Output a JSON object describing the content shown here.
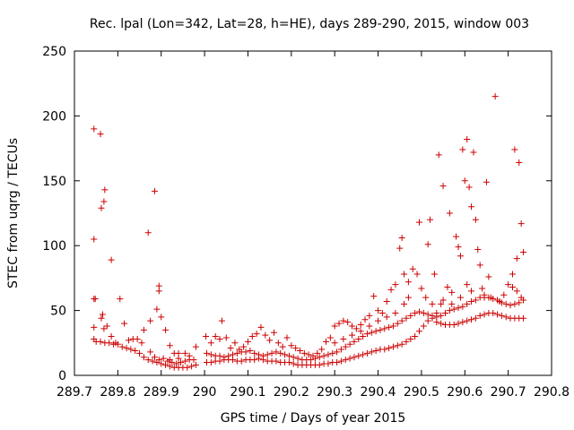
{
  "chart_data": {
    "type": "scatter",
    "title": "Rec. lpal (Lon=342, Lat=28, h=HE), days 289-290, 2015, window 003",
    "xlabel": "GPS time / Days of year 2015",
    "ylabel": "STEC from uqrg / TECUs",
    "xlim": [
      289.7,
      290.8
    ],
    "ylim": [
      0,
      250
    ],
    "xticks": [
      "289.7",
      "289.8",
      "289.9",
      "290",
      "290.1",
      "290.2",
      "290.3",
      "290.4",
      "290.5",
      "290.6",
      "290.7",
      "290.8"
    ],
    "yticks": [
      "0",
      "50",
      "100",
      "150",
      "200",
      "250"
    ],
    "grid": false,
    "legend": "none",
    "marker": "+",
    "color": "#cc0000",
    "points": [
      [
        289.745,
        190
      ],
      [
        289.76,
        186
      ],
      [
        289.77,
        143
      ],
      [
        289.768,
        134
      ],
      [
        289.762,
        129
      ],
      [
        289.745,
        105
      ],
      [
        289.785,
        89
      ],
      [
        289.745,
        59
      ],
      [
        289.748,
        59
      ],
      [
        289.805,
        59
      ],
      [
        289.765,
        47
      ],
      [
        289.762,
        44
      ],
      [
        289.768,
        36
      ],
      [
        289.775,
        38
      ],
      [
        289.745,
        37
      ],
      [
        289.745,
        28
      ],
      [
        289.75,
        26
      ],
      [
        289.76,
        26
      ],
      [
        289.77,
        25
      ],
      [
        289.78,
        25
      ],
      [
        289.79,
        24
      ],
      [
        289.8,
        24
      ],
      [
        289.81,
        22
      ],
      [
        289.82,
        21
      ],
      [
        289.83,
        20
      ],
      [
        289.84,
        19
      ],
      [
        289.85,
        17
      ],
      [
        289.86,
        14
      ],
      [
        289.87,
        12
      ],
      [
        289.88,
        11
      ],
      [
        289.89,
        10
      ],
      [
        289.9,
        9
      ],
      [
        289.91,
        8
      ],
      [
        289.92,
        7
      ],
      [
        289.93,
        6
      ],
      [
        289.94,
        6
      ],
      [
        289.95,
        6
      ],
      [
        289.96,
        6
      ],
      [
        289.97,
        7
      ],
      [
        289.98,
        8
      ],
      [
        289.785,
        30
      ],
      [
        289.795,
        25
      ],
      [
        289.815,
        40
      ],
      [
        289.825,
        27
      ],
      [
        289.835,
        28
      ],
      [
        289.845,
        28
      ],
      [
        289.855,
        25
      ],
      [
        289.86,
        35
      ],
      [
        289.875,
        42
      ],
      [
        289.87,
        110
      ],
      [
        289.885,
        142
      ],
      [
        289.89,
        51
      ],
      [
        289.895,
        69
      ],
      [
        289.895,
        65
      ],
      [
        289.9,
        45
      ],
      [
        289.91,
        35
      ],
      [
        289.92,
        23
      ],
      [
        289.93,
        17
      ],
      [
        289.94,
        17
      ],
      [
        289.955,
        17
      ],
      [
        289.965,
        15
      ],
      [
        289.98,
        22
      ],
      [
        289.875,
        18
      ],
      [
        289.885,
        14
      ],
      [
        289.895,
        12
      ],
      [
        289.905,
        13
      ],
      [
        289.915,
        11
      ],
      [
        289.925,
        10
      ],
      [
        289.935,
        9
      ],
      [
        289.945,
        10
      ],
      [
        289.955,
        11
      ],
      [
        289.965,
        12
      ],
      [
        289.975,
        12
      ],
      [
        289.92,
        12
      ],
      [
        289.94,
        13
      ],
      [
        290.005,
        10
      ],
      [
        290.015,
        10
      ],
      [
        290.025,
        11
      ],
      [
        290.035,
        11
      ],
      [
        290.045,
        12
      ],
      [
        290.055,
        12
      ],
      [
        290.065,
        12
      ],
      [
        290.075,
        11
      ],
      [
        290.085,
        11
      ],
      [
        290.095,
        12
      ],
      [
        290.105,
        12
      ],
      [
        290.115,
        12
      ],
      [
        290.125,
        13
      ],
      [
        290.135,
        12
      ],
      [
        290.145,
        11
      ],
      [
        290.155,
        11
      ],
      [
        290.165,
        11
      ],
      [
        290.175,
        10
      ],
      [
        290.185,
        10
      ],
      [
        290.195,
        10
      ],
      [
        290.205,
        9
      ],
      [
        290.215,
        8
      ],
      [
        290.225,
        8
      ],
      [
        290.235,
        8
      ],
      [
        290.245,
        8
      ],
      [
        290.255,
        8
      ],
      [
        290.265,
        8
      ],
      [
        290.275,
        9
      ],
      [
        290.285,
        9
      ],
      [
        290.295,
        10
      ],
      [
        290.305,
        10
      ],
      [
        290.315,
        11
      ],
      [
        290.325,
        12
      ],
      [
        290.335,
        13
      ],
      [
        290.345,
        14
      ],
      [
        290.355,
        15
      ],
      [
        290.365,
        16
      ],
      [
        290.375,
        17
      ],
      [
        290.385,
        18
      ],
      [
        290.395,
        19
      ],
      [
        290.405,
        20
      ],
      [
        290.415,
        20
      ],
      [
        290.425,
        21
      ],
      [
        290.435,
        22
      ],
      [
        290.445,
        23
      ],
      [
        290.455,
        24
      ],
      [
        290.465,
        26
      ],
      [
        290.475,
        28
      ],
      [
        290.485,
        30
      ],
      [
        290.495,
        34
      ],
      [
        290.505,
        38
      ],
      [
        290.515,
        42
      ],
      [
        290.525,
        44
      ],
      [
        290.535,
        41
      ],
      [
        290.545,
        40
      ],
      [
        290.555,
        39
      ],
      [
        290.565,
        39
      ],
      [
        290.575,
        39
      ],
      [
        290.585,
        40
      ],
      [
        290.595,
        41
      ],
      [
        290.605,
        42
      ],
      [
        290.615,
        43
      ],
      [
        290.625,
        44
      ],
      [
        290.635,
        46
      ],
      [
        290.645,
        47
      ],
      [
        290.655,
        48
      ],
      [
        290.665,
        48
      ],
      [
        290.675,
        47
      ],
      [
        290.685,
        46
      ],
      [
        290.695,
        45
      ],
      [
        290.705,
        44
      ],
      [
        290.715,
        44
      ],
      [
        290.725,
        44
      ],
      [
        290.735,
        44
      ],
      [
        290.005,
        17
      ],
      [
        290.015,
        16
      ],
      [
        290.025,
        15
      ],
      [
        290.035,
        15
      ],
      [
        290.045,
        14
      ],
      [
        290.055,
        15
      ],
      [
        290.065,
        16
      ],
      [
        290.075,
        17
      ],
      [
        290.085,
        18
      ],
      [
        290.095,
        18
      ],
      [
        290.105,
        19
      ],
      [
        290.115,
        17
      ],
      [
        290.125,
        16
      ],
      [
        290.135,
        15
      ],
      [
        290.145,
        16
      ],
      [
        290.155,
        17
      ],
      [
        290.165,
        18
      ],
      [
        290.175,
        17
      ],
      [
        290.185,
        16
      ],
      [
        290.195,
        15
      ],
      [
        290.205,
        14
      ],
      [
        290.215,
        13
      ],
      [
        290.225,
        12
      ],
      [
        290.235,
        12
      ],
      [
        290.245,
        12
      ],
      [
        290.255,
        13
      ],
      [
        290.265,
        14
      ],
      [
        290.275,
        15
      ],
      [
        290.285,
        16
      ],
      [
        290.295,
        17
      ],
      [
        290.305,
        18
      ],
      [
        290.315,
        20
      ],
      [
        290.325,
        22
      ],
      [
        290.335,
        24
      ],
      [
        290.345,
        26
      ],
      [
        290.355,
        28
      ],
      [
        290.365,
        30
      ],
      [
        290.375,
        32
      ],
      [
        290.385,
        33
      ],
      [
        290.395,
        34
      ],
      [
        290.405,
        35
      ],
      [
        290.415,
        36
      ],
      [
        290.425,
        37
      ],
      [
        290.435,
        38
      ],
      [
        290.445,
        40
      ],
      [
        290.455,
        42
      ],
      [
        290.465,
        44
      ],
      [
        290.475,
        46
      ],
      [
        290.485,
        48
      ],
      [
        290.495,
        49
      ],
      [
        290.505,
        48
      ],
      [
        290.515,
        47
      ],
      [
        290.525,
        46
      ],
      [
        290.535,
        45
      ],
      [
        290.545,
        46
      ],
      [
        290.555,
        48
      ],
      [
        290.565,
        50
      ],
      [
        290.575,
        51
      ],
      [
        290.585,
        52
      ],
      [
        290.595,
        53
      ],
      [
        290.605,
        55
      ],
      [
        290.615,
        57
      ],
      [
        290.625,
        58
      ],
      [
        290.635,
        60
      ],
      [
        290.645,
        60
      ],
      [
        290.655,
        60
      ],
      [
        290.665,
        59
      ],
      [
        290.675,
        58
      ],
      [
        290.685,
        56
      ],
      [
        290.695,
        55
      ],
      [
        290.705,
        54
      ],
      [
        290.715,
        55
      ],
      [
        290.725,
        56
      ],
      [
        290.735,
        58
      ],
      [
        290.003,
        30
      ],
      [
        290.015,
        25
      ],
      [
        290.025,
        30
      ],
      [
        290.035,
        28
      ],
      [
        290.04,
        42
      ],
      [
        290.05,
        29
      ],
      [
        290.06,
        21
      ],
      [
        290.07,
        25
      ],
      [
        290.08,
        20
      ],
      [
        290.09,
        22
      ],
      [
        290.1,
        26
      ],
      [
        290.11,
        30
      ],
      [
        290.12,
        32
      ],
      [
        290.13,
        37
      ],
      [
        290.14,
        31
      ],
      [
        290.15,
        27
      ],
      [
        290.16,
        33
      ],
      [
        290.17,
        25
      ],
      [
        290.18,
        22
      ],
      [
        290.19,
        29
      ],
      [
        290.2,
        23
      ],
      [
        290.21,
        21
      ],
      [
        290.22,
        19
      ],
      [
        290.23,
        17
      ],
      [
        290.24,
        16
      ],
      [
        290.25,
        15
      ],
      [
        290.26,
        17
      ],
      [
        290.27,
        20
      ],
      [
        290.28,
        26
      ],
      [
        290.29,
        29
      ],
      [
        290.3,
        38
      ],
      [
        290.31,
        40
      ],
      [
        290.32,
        42
      ],
      [
        290.33,
        41
      ],
      [
        290.34,
        38
      ],
      [
        290.35,
        36
      ],
      [
        290.36,
        39
      ],
      [
        290.37,
        43
      ],
      [
        290.38,
        46
      ],
      [
        290.39,
        61
      ],
      [
        290.4,
        50
      ],
      [
        290.41,
        48
      ],
      [
        290.42,
        57
      ],
      [
        290.43,
        66
      ],
      [
        290.44,
        70
      ],
      [
        290.45,
        98
      ],
      [
        290.455,
        106
      ],
      [
        290.46,
        78
      ],
      [
        290.47,
        72
      ],
      [
        290.48,
        82
      ],
      [
        290.49,
        78
      ],
      [
        290.5,
        67
      ],
      [
        290.51,
        60
      ],
      [
        290.495,
        118
      ],
      [
        290.52,
        120
      ],
      [
        290.515,
        101
      ],
      [
        290.53,
        78
      ],
      [
        290.54,
        170
      ],
      [
        290.55,
        146
      ],
      [
        290.56,
        68
      ],
      [
        290.565,
        125
      ],
      [
        290.57,
        64
      ],
      [
        290.58,
        107
      ],
      [
        290.585,
        99
      ],
      [
        290.59,
        92
      ],
      [
        290.595,
        174
      ],
      [
        290.6,
        150
      ],
      [
        290.605,
        182
      ],
      [
        290.61,
        145
      ],
      [
        290.615,
        130
      ],
      [
        290.62,
        172
      ],
      [
        290.625,
        120
      ],
      [
        290.63,
        97
      ],
      [
        290.635,
        85
      ],
      [
        290.64,
        67
      ],
      [
        290.645,
        62
      ],
      [
        290.65,
        149
      ],
      [
        290.655,
        76
      ],
      [
        290.66,
        60
      ],
      [
        290.67,
        215
      ],
      [
        290.68,
        57
      ],
      [
        290.69,
        62
      ],
      [
        290.7,
        70
      ],
      [
        290.71,
        78
      ],
      [
        290.715,
        174
      ],
      [
        290.72,
        90
      ],
      [
        290.725,
        164
      ],
      [
        290.73,
        117
      ],
      [
        290.735,
        95
      ],
      [
        290.73,
        60
      ],
      [
        290.72,
        65
      ],
      [
        290.71,
        68
      ],
      [
        290.605,
        70
      ],
      [
        290.615,
        65
      ],
      [
        290.59,
        60
      ],
      [
        290.57,
        55
      ],
      [
        290.55,
        58
      ],
      [
        290.535,
        48
      ],
      [
        290.545,
        55
      ],
      [
        290.525,
        55
      ],
      [
        290.47,
        60
      ],
      [
        290.46,
        55
      ],
      [
        290.44,
        48
      ],
      [
        290.42,
        45
      ],
      [
        290.4,
        42
      ],
      [
        290.38,
        38
      ],
      [
        290.36,
        34
      ],
      [
        290.34,
        31
      ],
      [
        290.32,
        28
      ],
      [
        290.3,
        25
      ]
    ]
  }
}
